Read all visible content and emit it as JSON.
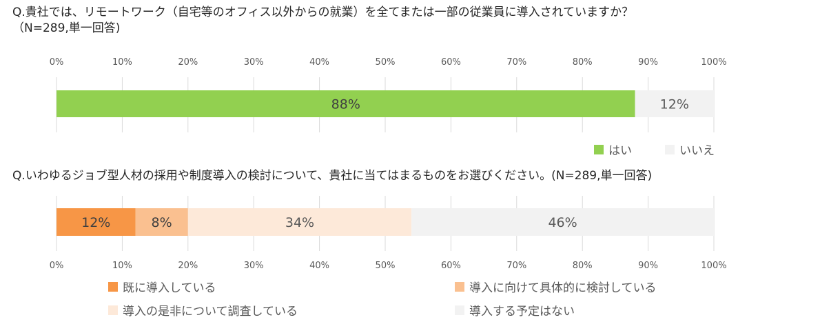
{
  "q1": {
    "line1": "Q.貴社では、リモートワーク（自宅等のオフィス以外からの就業）を全てまたは一部の従業員に導入されていますか？",
    "line2": "（N=289,単一回答)"
  },
  "q2": {
    "line1": "Q.いわゆるジョブ型人材の採用や制度導入の検討について、貴社に当てはまるものをお選びください。(N=289,単一回答)"
  },
  "chart_data": [
    {
      "type": "bar",
      "orientation": "horizontal",
      "stacked": true,
      "percent": true,
      "xlim": [
        0,
        100
      ],
      "ticks": [
        "0%",
        "10%",
        "20%",
        "30%",
        "40%",
        "50%",
        "60%",
        "70%",
        "80%",
        "90%",
        "100%"
      ],
      "grid": true,
      "legend_position": "bottom-right",
      "series": [
        {
          "name": "はい",
          "value": 88,
          "label": "88%",
          "color": "#92d050",
          "label_color": "#404040"
        },
        {
          "name": "いいえ",
          "value": 12,
          "label": "12%",
          "color": "#f2f2f2",
          "label_color": "#595959"
        }
      ]
    },
    {
      "type": "bar",
      "orientation": "horizontal",
      "stacked": true,
      "percent": true,
      "xlim": [
        0,
        100
      ],
      "ticks": [
        "0%",
        "10%",
        "20%",
        "30%",
        "40%",
        "50%",
        "60%",
        "70%",
        "80%",
        "90%",
        "100%"
      ],
      "grid": true,
      "legend_position": "bottom",
      "series": [
        {
          "name": "既に導入している",
          "value": 12,
          "label": "12%",
          "color": "#f79646",
          "label_color": "#404040"
        },
        {
          "name": "導入に向けて具体的に検討している",
          "value": 8,
          "label": "8%",
          "color": "#fac090",
          "label_color": "#404040"
        },
        {
          "name": "導入の是非について調査している",
          "value": 34,
          "label": "34%",
          "color": "#fde9d9",
          "label_color": "#595959"
        },
        {
          "name": "導入する予定はない",
          "value": 46,
          "label": "46%",
          "color": "#f2f2f2",
          "label_color": "#595959"
        }
      ]
    }
  ]
}
